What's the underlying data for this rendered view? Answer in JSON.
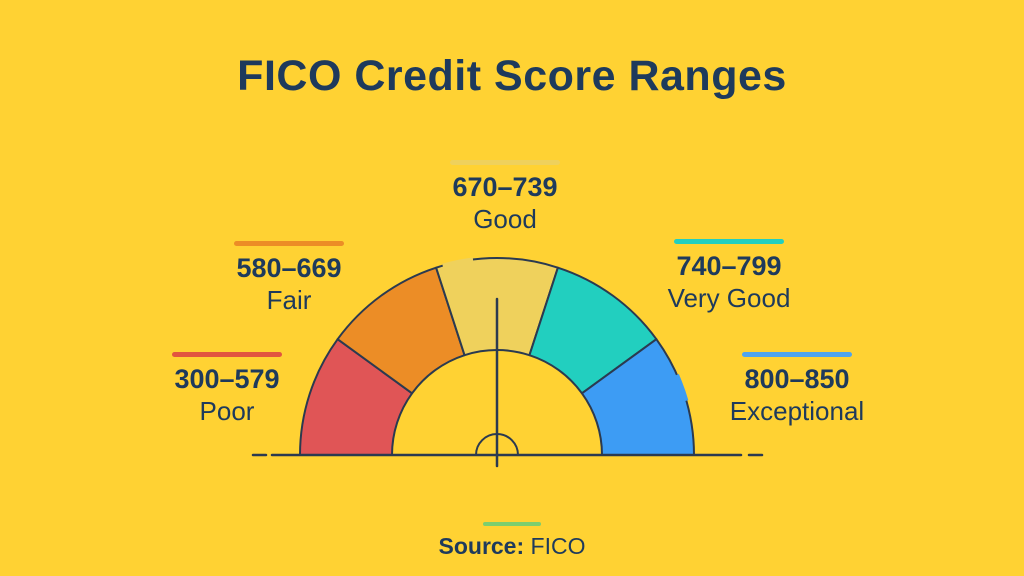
{
  "page": {
    "background_color": "#FFD233",
    "text_color": "#1E3A5C"
  },
  "title": "FICO Credit Score Ranges",
  "chart_data": {
    "type": "gauge",
    "title": "FICO Credit Score Ranges",
    "scale_min": 300,
    "scale_max": 850,
    "needle_angle_deg": 90,
    "legend_position": "around-gauge",
    "outline_color": "#2B3A50",
    "segments": [
      {
        "range": "300–579",
        "label": "Poor",
        "color": "#E05556",
        "bar_color": "#E2553F"
      },
      {
        "range": "580–669",
        "label": "Fair",
        "color": "#EC8D26",
        "bar_color": "#EC8D26"
      },
      {
        "range": "670–739",
        "label": "Good",
        "color": "#EFD15C",
        "bar_color": "#EFD15C"
      },
      {
        "range": "740–799",
        "label": "Very Good",
        "color": "#22CFBF",
        "bar_color": "#22CFBF"
      },
      {
        "range": "800–850",
        "label": "Exceptional",
        "color": "#3D9CF4",
        "bar_color": "#4FA4EE"
      }
    ],
    "source": "FICO"
  },
  "source_note": {
    "prefix": "Source:",
    "value": "FICO",
    "line_color": "#7CCE6E"
  }
}
